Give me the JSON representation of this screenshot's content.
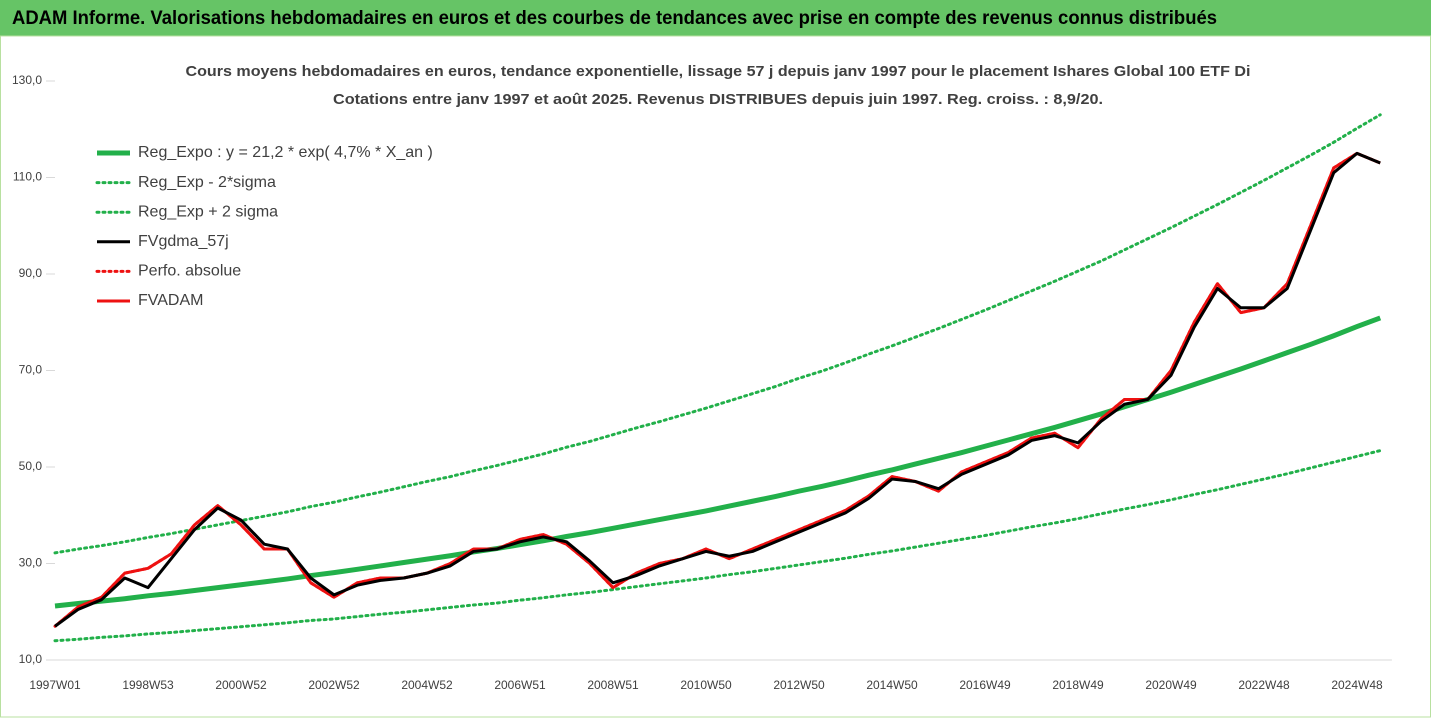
{
  "header": {
    "title": "ADAM Informe. Valorisations hebdomadaires en euros et des courbes de tendances avec prise en compte des revenus connus distribués"
  },
  "chart_data": {
    "type": "line",
    "title": "Cours moyens hebdomadaires en euros, tendance exponentielle, lissage 57 j depuis janv 1997  pour le placement Ishares Global 100 ETF Di",
    "subtitle": "Cotations entre janv 1997 et août 2025. Revenus DISTRIBUES depuis juin 1997. Reg. croiss. : 8,9/20.",
    "categories": [
      "1997W01",
      null,
      null,
      null,
      "1998W53",
      null,
      null,
      null,
      "2000W52",
      null,
      null,
      null,
      "2002W52",
      null,
      null,
      null,
      "2004W52",
      null,
      null,
      null,
      "2006W51",
      null,
      null,
      null,
      "2008W51",
      null,
      null,
      null,
      "2010W50",
      null,
      null,
      null,
      "2012W50",
      null,
      null,
      null,
      "2014W50",
      null,
      null,
      null,
      "2016W49",
      null,
      null,
      null,
      "2018W49",
      null,
      null,
      null,
      "2020W49",
      null,
      null,
      null,
      "2022W48",
      null,
      null,
      null,
      "2024W48",
      null
    ],
    "ylim": [
      10,
      130
    ],
    "yticks": [
      {
        "value": 10,
        "label": "10,0"
      },
      {
        "value": 30,
        "label": "30,0"
      },
      {
        "value": 50,
        "label": "50,0"
      },
      {
        "value": 70,
        "label": "70,0"
      },
      {
        "value": 90,
        "label": "90,0"
      },
      {
        "value": 110,
        "label": "110,0"
      },
      {
        "value": 130,
        "label": "130,0"
      }
    ],
    "grid": false,
    "legend": "upper left",
    "series": [
      {
        "name": "Reg_Expo : y = 21,2 * exp( 4,7% *  X_an )",
        "color": "#22b04a",
        "style": "solid",
        "values": [
          21.2,
          21.7,
          22.2,
          22.7,
          23.3,
          23.8,
          24.4,
          25.0,
          25.6,
          26.2,
          26.8,
          27.5,
          28.1,
          28.8,
          29.5,
          30.2,
          30.9,
          31.6,
          32.4,
          33.1,
          33.9,
          34.7,
          35.6,
          36.4,
          37.3,
          38.2,
          39.1,
          40.0,
          40.9,
          41.9,
          42.9,
          43.9,
          45.0,
          46.0,
          47.1,
          48.3,
          49.4,
          50.6,
          51.8,
          53.0,
          54.3,
          55.6,
          56.9,
          58.2,
          59.6,
          61.0,
          62.5,
          64.0,
          65.5,
          67.1,
          68.7,
          70.3,
          72.0,
          73.7,
          75.4,
          77.2,
          79.1,
          80.9
        ]
      },
      {
        "name": "Reg_Exp - 2*sigma",
        "color": "#22b04a",
        "style": "dotted",
        "values": [
          14.0,
          14.3,
          14.7,
          15.0,
          15.4,
          15.7,
          16.1,
          16.5,
          16.9,
          17.3,
          17.7,
          18.2,
          18.5,
          19.0,
          19.5,
          19.9,
          20.4,
          20.9,
          21.4,
          21.8,
          22.4,
          22.9,
          23.5,
          24.0,
          24.6,
          25.2,
          25.8,
          26.4,
          27.0,
          27.7,
          28.3,
          29.0,
          29.7,
          30.4,
          31.1,
          31.9,
          32.6,
          33.4,
          34.2,
          35.0,
          35.8,
          36.7,
          37.6,
          38.4,
          39.3,
          40.3,
          41.3,
          42.2,
          43.2,
          44.3,
          45.3,
          46.4,
          47.5,
          48.6,
          49.8,
          51.0,
          52.2,
          53.4
        ]
      },
      {
        "name": "Reg_Exp + 2 sigma",
        "color": "#22b04a",
        "style": "dotted",
        "values": [
          32.2,
          33.0,
          33.7,
          34.5,
          35.4,
          36.2,
          37.1,
          38.0,
          38.9,
          39.8,
          40.7,
          41.8,
          42.7,
          43.8,
          44.8,
          45.9,
          47.0,
          48.0,
          49.2,
          50.3,
          51.5,
          52.7,
          54.1,
          55.3,
          56.7,
          58.1,
          59.4,
          60.8,
          62.2,
          63.7,
          65.2,
          66.7,
          68.4,
          69.9,
          71.6,
          73.4,
          75.1,
          76.9,
          78.7,
          80.6,
          82.5,
          84.5,
          86.5,
          88.5,
          90.6,
          92.7,
          95.0,
          97.3,
          99.6,
          102.0,
          104.4,
          106.9,
          109.4,
          112.0,
          114.6,
          117.3,
          120.2,
          123.0
        ]
      },
      {
        "name": "FVgdma_57j",
        "color": "#000000",
        "style": "solid",
        "values": [
          17,
          20.5,
          22.5,
          27,
          25,
          31,
          37,
          41.5,
          39,
          34,
          33,
          27,
          23.5,
          25.5,
          26.5,
          27,
          28,
          29.5,
          32.5,
          33,
          34.5,
          35.5,
          34.5,
          30.5,
          26,
          27.5,
          29.5,
          31,
          32.5,
          31.5,
          32.5,
          34.5,
          36.5,
          38.5,
          40.5,
          43.5,
          47.5,
          47,
          45.5,
          48.5,
          50.5,
          52.5,
          55.5,
          56.5,
          55,
          59.5,
          63,
          64,
          69,
          79,
          87,
          83,
          83,
          87,
          99,
          111,
          115,
          113
        ]
      },
      {
        "name": "Perfo. absolue",
        "color": "#ee1111",
        "style": "dotted",
        "values": [
          17,
          21,
          23,
          28,
          29,
          32,
          38,
          42,
          38,
          33,
          33,
          26,
          23,
          26,
          27,
          27,
          28,
          30,
          33,
          33,
          35,
          36,
          34,
          30,
          25,
          28,
          30,
          31,
          33,
          31,
          33,
          35,
          37,
          39,
          41,
          44,
          48,
          47,
          45,
          49,
          51,
          53,
          56,
          57,
          54,
          60,
          64,
          64,
          70,
          80,
          88,
          82,
          83,
          88,
          100,
          112,
          115,
          113
        ]
      },
      {
        "name": "FVADAM",
        "color": "#ee1111",
        "style": "solid",
        "values": [
          17,
          21,
          23,
          28,
          29,
          32,
          38,
          42,
          38,
          33,
          33,
          26,
          23,
          26,
          27,
          27,
          28,
          30,
          33,
          33,
          35,
          36,
          34,
          30,
          25,
          28,
          30,
          31,
          33,
          31,
          33,
          35,
          37,
          39,
          41,
          44,
          48,
          47,
          45,
          49,
          51,
          53,
          56,
          57,
          54,
          60,
          64,
          64,
          70,
          80,
          88,
          82,
          83,
          88,
          100,
          112,
          115,
          113
        ]
      }
    ]
  }
}
